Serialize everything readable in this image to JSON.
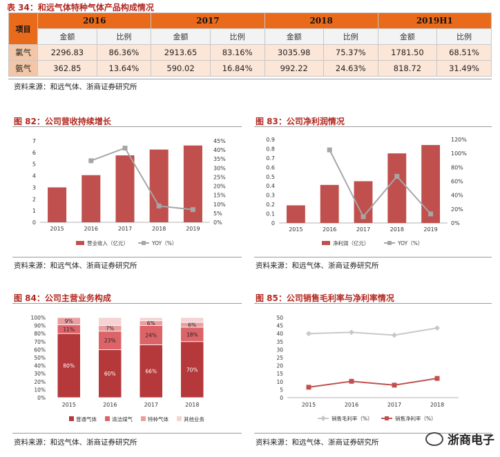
{
  "table": {
    "title": "表 34：和远气体特种气体产品构成情况",
    "project_label": "项目",
    "years": [
      "2016",
      "2017",
      "2018",
      "2019H1"
    ],
    "sub_amount": "金额",
    "sub_ratio": "比例",
    "rows": [
      {
        "name": "氯气",
        "cells": [
          "2296.83",
          "86.36%",
          "2913.65",
          "83.16%",
          "3035.98",
          "75.37%",
          "1781.50",
          "68.51%"
        ]
      },
      {
        "name": "氨气",
        "cells": [
          "362.85",
          "13.64%",
          "590.02",
          "16.84%",
          "992.22",
          "24.63%",
          "818.72",
          "31.49%"
        ]
      }
    ]
  },
  "sources": {
    "s1": "资料来源：和远气体、浙商证券研究所",
    "s2": "资料来源：和远气体、浙商证券研究所",
    "s3": "资料来源：和远气体、浙商证券研究所",
    "s4": "资料来源：和远气体、浙商证券研究所",
    "s5": "资料来源：和远气体、浙商证券研究所"
  },
  "chart_titles": {
    "c82": "图 82：公司营收持续增长",
    "c83": "图 83：公司净利润情况",
    "c84": "图 84：公司主营业务构成",
    "c85": "图 85：公司销售毛利率与净利率情况"
  },
  "watermark": "浙商电子",
  "colors": {
    "bar": "#c0504d",
    "line": "#a6a6a6",
    "orange": "#e96a1b",
    "title": "#b3271f"
  },
  "chart_data": [
    {
      "id": "c82",
      "type": "bar",
      "categories": [
        "2015",
        "2016",
        "2017",
        "2018",
        "2019"
      ],
      "series": [
        {
          "name": "营业收入（亿元）",
          "type": "bar",
          "axis": "left",
          "values": [
            3.0,
            4.05,
            5.75,
            6.25,
            6.6
          ]
        },
        {
          "name": "YOY（%）",
          "type": "line",
          "axis": "right",
          "values": [
            null,
            34,
            41,
            9,
            7
          ]
        }
      ],
      "ylim": [
        0,
        7
      ],
      "yticks": [
        0,
        1,
        2,
        3,
        4,
        5,
        6,
        7
      ],
      "y2lim": [
        0,
        45
      ],
      "y2ticks": [
        "0%",
        "5%",
        "10%",
        "15%",
        "20%",
        "25%",
        "30%",
        "35%",
        "40%",
        "45%"
      ]
    },
    {
      "id": "c83",
      "type": "bar",
      "categories": [
        "2015",
        "2016",
        "2017",
        "2018",
        "2019"
      ],
      "series": [
        {
          "name": "净利润（亿元）",
          "type": "bar",
          "axis": "left",
          "values": [
            0.19,
            0.41,
            0.45,
            0.75,
            0.84
          ]
        },
        {
          "name": "YOY（%）",
          "type": "line",
          "axis": "right",
          "values": [
            null,
            105,
            9,
            67,
            13
          ]
        }
      ],
      "ylim": [
        0,
        0.9
      ],
      "yticks": [
        "0",
        "0.1",
        "0.2",
        "0.3",
        "0.4",
        "0.5",
        "0.6",
        "0.7",
        "0.8",
        "0.9"
      ],
      "y2lim": [
        0,
        120
      ],
      "y2ticks": [
        "0%",
        "20%",
        "40%",
        "60%",
        "80%",
        "100%",
        "120%"
      ]
    },
    {
      "id": "c84",
      "type": "bar",
      "stacked": true,
      "categories": [
        "2015",
        "2016",
        "2017",
        "2018"
      ],
      "series": [
        {
          "name": "普通气体",
          "values": [
            80,
            60,
            66,
            70
          ],
          "labels": [
            "80%",
            "60%",
            "66%",
            "70%"
          ]
        },
        {
          "name": "清洁煤气",
          "values": [
            11,
            23,
            24,
            18
          ],
          "labels": [
            "11%",
            "23%",
            "24%",
            "18%"
          ]
        },
        {
          "name": "特种气体",
          "values": [
            9,
            7,
            6,
            6
          ],
          "labels": [
            "9%",
            "7%",
            "6%",
            "6%"
          ]
        },
        {
          "name": "其他业务",
          "values": [
            0,
            10,
            4,
            6
          ],
          "labels": [
            "",
            "",
            "",
            ""
          ]
        }
      ],
      "yticks": [
        "0%",
        "10%",
        "20%",
        "30%",
        "40%",
        "50%",
        "60%",
        "70%",
        "80%",
        "90%",
        "100%"
      ]
    },
    {
      "id": "c85",
      "type": "line",
      "categories": [
        "2015",
        "2016",
        "2017",
        "2018"
      ],
      "series": [
        {
          "name": "销售毛利率（%）",
          "values": [
            40,
            40.8,
            39,
            43.5
          ]
        },
        {
          "name": "销售净利率（%）",
          "values": [
            6.5,
            10.2,
            7.8,
            12
          ]
        }
      ],
      "ylim": [
        0,
        50
      ],
      "yticks": [
        "0",
        "5",
        "10",
        "15",
        "20",
        "25",
        "30",
        "35",
        "40",
        "45",
        "50"
      ]
    }
  ]
}
